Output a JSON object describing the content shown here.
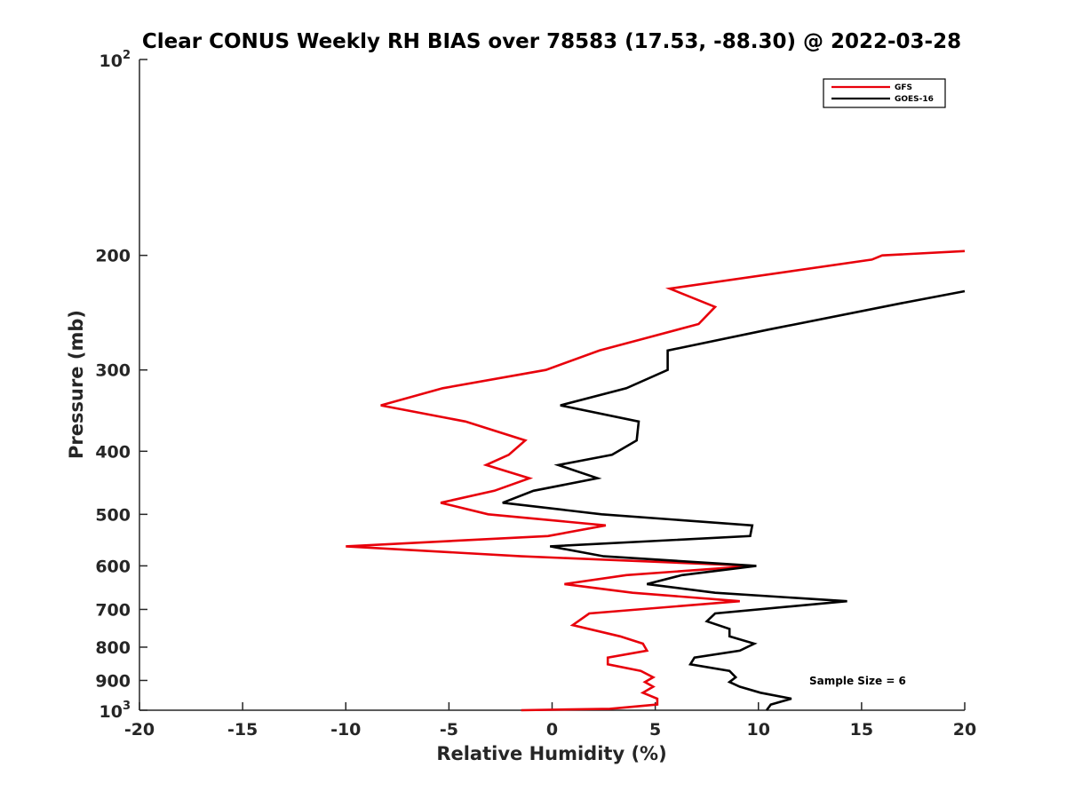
{
  "chart_data": {
    "type": "line",
    "title": "Clear CONUS Weekly RH BIAS over 78583 (17.53, -88.30) @ 2022-03-28",
    "xlabel": "Relative Humidity (%)",
    "ylabel": "Pressure (mb)",
    "xlim": [
      -20,
      20
    ],
    "ylim": [
      100,
      1000
    ],
    "yscale": "log",
    "yreversed": true,
    "x_ticks": [
      "-20",
      "-15",
      "-10",
      "-5",
      "0",
      "5",
      "10",
      "15",
      "20"
    ],
    "y_ticks": [
      {
        "value": 100,
        "base": "10",
        "exp": "2"
      },
      {
        "value": 200,
        "label": "200"
      },
      {
        "value": 300,
        "label": "300"
      },
      {
        "value": 400,
        "label": "400"
      },
      {
        "value": 500,
        "label": "500"
      },
      {
        "value": 600,
        "label": "600"
      },
      {
        "value": 700,
        "label": "700"
      },
      {
        "value": 800,
        "label": "800"
      },
      {
        "value": 900,
        "label": "900"
      },
      {
        "value": 1000,
        "base": "10",
        "exp": "3"
      }
    ],
    "grid": false,
    "legend_position": "top-right",
    "annotation": "Sample Size = 6",
    "series": [
      {
        "name": "GFS",
        "color": "#e8000b",
        "points": [
          [
            20.0,
            197
          ],
          [
            16.0,
            200
          ],
          [
            15.5,
            203
          ],
          [
            5.7,
            225
          ],
          [
            7.9,
            240
          ],
          [
            7.1,
            255
          ],
          [
            2.3,
            280
          ],
          [
            -0.3,
            300
          ],
          [
            -5.3,
            320
          ],
          [
            -8.3,
            340
          ],
          [
            -4.2,
            360
          ],
          [
            -1.3,
            385
          ],
          [
            -2.1,
            405
          ],
          [
            -3.2,
            420
          ],
          [
            -1.1,
            440
          ],
          [
            -2.8,
            460
          ],
          [
            -5.4,
            480
          ],
          [
            -3.1,
            500
          ],
          [
            2.6,
            520
          ],
          [
            -0.2,
            540
          ],
          [
            -10.0,
            560
          ],
          [
            -1.5,
            580
          ],
          [
            9.8,
            600
          ],
          [
            3.6,
            620
          ],
          [
            0.6,
            640
          ],
          [
            3.9,
            660
          ],
          [
            9.1,
            680
          ],
          [
            1.8,
            710
          ],
          [
            1.0,
            740
          ],
          [
            3.3,
            770
          ],
          [
            4.4,
            790
          ],
          [
            4.6,
            810
          ],
          [
            2.7,
            830
          ],
          [
            2.7,
            850
          ],
          [
            4.3,
            870
          ],
          [
            4.9,
            890
          ],
          [
            4.5,
            905
          ],
          [
            4.9,
            920
          ],
          [
            4.4,
            940
          ],
          [
            5.1,
            960
          ],
          [
            5.1,
            980
          ],
          [
            2.8,
            995
          ],
          [
            -1.5,
            1000
          ]
        ]
      },
      {
        "name": "GOES-16",
        "color": "#000000",
        "points": [
          [
            20.0,
            227
          ],
          [
            16.9,
            237
          ],
          [
            10.5,
            260
          ],
          [
            5.6,
            280
          ],
          [
            5.6,
            300
          ],
          [
            3.6,
            320
          ],
          [
            0.4,
            340
          ],
          [
            4.2,
            360
          ],
          [
            4.1,
            385
          ],
          [
            2.9,
            405
          ],
          [
            0.3,
            420
          ],
          [
            2.2,
            440
          ],
          [
            -0.9,
            460
          ],
          [
            -2.4,
            480
          ],
          [
            2.4,
            500
          ],
          [
            9.7,
            520
          ],
          [
            9.6,
            540
          ],
          [
            -0.1,
            560
          ],
          [
            2.5,
            580
          ],
          [
            9.9,
            600
          ],
          [
            6.3,
            620
          ],
          [
            4.6,
            640
          ],
          [
            7.9,
            660
          ],
          [
            14.3,
            680
          ],
          [
            7.9,
            710
          ],
          [
            7.5,
            730
          ],
          [
            8.6,
            750
          ],
          [
            8.6,
            770
          ],
          [
            9.8,
            790
          ],
          [
            9.1,
            810
          ],
          [
            6.9,
            830
          ],
          [
            6.7,
            850
          ],
          [
            8.6,
            870
          ],
          [
            8.9,
            890
          ],
          [
            8.6,
            905
          ],
          [
            9.1,
            920
          ],
          [
            10.1,
            940
          ],
          [
            11.6,
            960
          ],
          [
            10.6,
            980
          ],
          [
            10.4,
            1000
          ]
        ]
      }
    ]
  }
}
